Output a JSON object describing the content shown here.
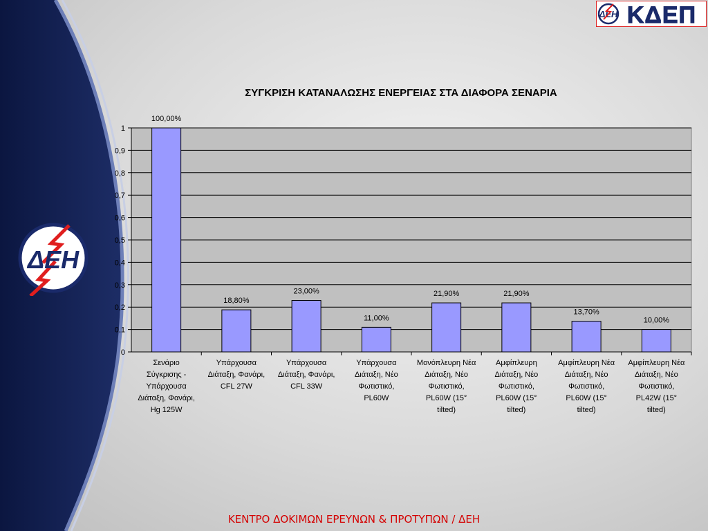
{
  "brand": {
    "logo_left_text": "ΔΕΗ",
    "logo_right_text": "ΚΔΕΠ",
    "accent_red": "#d40000",
    "navy": "#14214f",
    "bar_color": "#9999ff"
  },
  "footer": {
    "text": "ΚΕΝΤΡΟ ΔΟΚΙΜΩΝ ΕΡΕΥΝΩΝ & ΠΡΟΤΥΠΩΝ / ΔΕΗ"
  },
  "chart_data": {
    "type": "bar",
    "title": "ΣΥΓΚΡΙΣΗ ΚΑΤΑΝΑΛΩΣΗΣ ΕΝΕΡΓΕΙΑΣ ΣΤΑ ΔΙΑΦΟΡΑ ΣΕΝΑΡΙΑ",
    "xlabel": "",
    "ylabel": "",
    "ylim": [
      0,
      1
    ],
    "yticks": [
      "0",
      "0,1",
      "0,2",
      "0,3",
      "0,4",
      "0,5",
      "0,6",
      "0,7",
      "0,8",
      "0,9",
      "1"
    ],
    "grid": true,
    "categories": [
      [
        "Σενάριο",
        "Σύγκρισης -",
        "Υπάρχουσα",
        "Διάταξη, Φανάρι,",
        "Hg 125W"
      ],
      [
        "Υπάρχουσα",
        "Διάταξη, Φανάρι,",
        "CFL 27W"
      ],
      [
        "Υπάρχουσα",
        "Διάταξη, Φανάρι,",
        "CFL 33W"
      ],
      [
        "Υπάρχουσα",
        "Διάταξη,  Νέο",
        "Φωτιστικό,",
        "PL60W"
      ],
      [
        "Μονόπλευρη Νέα",
        "Διάταξη, Νέο",
        "Φωτιστικό,",
        "PL60W (15°",
        "tilted)"
      ],
      [
        "Αμφίπλευρη",
        "Διάταξη,  Νέο",
        "Φωτιστικό,",
        "PL60W (15°",
        "tilted)"
      ],
      [
        "Αμφίπλευρη Νέα",
        "Διάταξη, Νέο",
        "Φωτιστικό,",
        "PL60W (15°",
        "tilted)"
      ],
      [
        "Αμφίπλευρη Νέα",
        "Διάταξη, Νέο",
        "Φωτιστικό,",
        "PL42W (15°",
        "tilted)"
      ]
    ],
    "values": [
      1.0,
      0.188,
      0.23,
      0.11,
      0.219,
      0.219,
      0.137,
      0.1
    ],
    "data_labels": [
      "100,00%",
      "18,80%",
      "23,00%",
      "11,00%",
      "21,90%",
      "21,90%",
      "13,70%",
      "10,00%"
    ]
  }
}
